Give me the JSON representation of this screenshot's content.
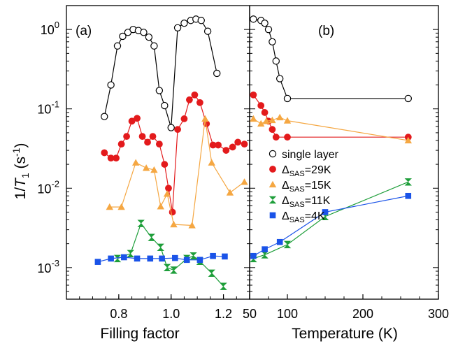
{
  "chart_data": [
    {
      "type": "scatter",
      "panel_label": "(a)",
      "xlabel": "Filling factor",
      "ylabel_main": "1/",
      "ylabel_italic": "T",
      "ylabel_sub": "1",
      "ylabel_unit_open": " (s",
      "ylabel_unit_sup": "-1",
      "ylabel_unit_close": ")",
      "xlim": [
        0.6,
        1.3
      ],
      "ylim": [
        0.0004,
        2
      ],
      "yscale": "log",
      "xticks": [
        0.8,
        1.0,
        1.2
      ],
      "xtick_labels": [
        "0.8",
        "1.0",
        "1.2"
      ],
      "yticks": [
        0.001,
        0.01,
        0.1,
        1
      ],
      "ytick_base": "10",
      "ytick_exps": [
        "-3",
        "-2",
        "-1",
        "0"
      ],
      "series": [
        {
          "name": "single layer",
          "color": "#000000",
          "marker": "circle-open",
          "x": [
            0.745,
            0.77,
            0.795,
            0.815,
            0.835,
            0.855,
            0.875,
            0.895,
            0.915,
            0.935,
            0.955,
            0.975,
            1.0,
            1.025,
            1.05,
            1.075,
            1.095,
            1.115,
            1.14,
            1.175
          ],
          "y": [
            0.08,
            0.2,
            0.62,
            0.82,
            0.92,
            1.0,
            0.97,
            0.92,
            0.8,
            0.62,
            0.17,
            0.11,
            0.058,
            1.05,
            1.2,
            1.3,
            1.35,
            1.3,
            0.95,
            0.28
          ]
        },
        {
          "name": "29K",
          "color": "#e31a1c",
          "marker": "circle",
          "x": [
            0.745,
            0.77,
            0.79,
            0.81,
            0.83,
            0.85,
            0.87,
            0.89,
            0.91,
            0.93,
            0.955,
            0.975,
            0.99,
            1.005,
            1.025,
            1.05,
            1.07,
            1.09,
            1.11,
            1.135,
            1.16,
            1.18,
            1.21,
            1.235,
            1.255,
            1.28
          ],
          "y": [
            0.028,
            0.024,
            0.024,
            0.036,
            0.045,
            0.07,
            0.076,
            0.045,
            0.038,
            0.045,
            0.036,
            0.02,
            0.01,
            0.005,
            0.055,
            0.075,
            0.13,
            0.15,
            0.12,
            0.065,
            0.035,
            0.035,
            0.03,
            0.033,
            0.038,
            0.036
          ]
        },
        {
          "name": "15K",
          "color": "#f5a742",
          "marker": "triangle-up",
          "x": [
            0.765,
            0.81,
            0.865,
            0.905,
            0.935,
            0.96,
            0.985,
            1.01,
            1.08,
            1.13,
            1.155,
            1.225,
            1.28
          ],
          "y": [
            0.0058,
            0.0058,
            0.021,
            0.018,
            0.017,
            0.0059,
            0.0085,
            0.0035,
            0.0034,
            0.075,
            0.021,
            0.0088,
            0.012
          ]
        },
        {
          "name": "11K",
          "color": "#1e9e3a",
          "marker": "hourglass",
          "x": [
            0.795,
            0.845,
            0.885,
            0.925,
            0.96,
            0.985,
            1.01,
            1.06,
            1.085,
            1.11,
            1.155,
            1.2
          ],
          "y": [
            0.0013,
            0.0015,
            0.0036,
            0.0024,
            0.0018,
            0.001,
            0.00093,
            0.0013,
            0.0014,
            0.0012,
            0.00085,
            0.00058
          ]
        },
        {
          "name": "4K",
          "color": "#1a53e8",
          "marker": "square",
          "x": [
            0.72,
            0.77,
            0.82,
            0.87,
            0.92,
            0.965,
            1.015,
            1.06,
            1.11,
            1.16,
            1.205
          ],
          "y": [
            0.00118,
            0.0013,
            0.00135,
            0.0013,
            0.0013,
            0.0013,
            0.00132,
            0.00125,
            0.00125,
            0.0014,
            0.00138
          ]
        }
      ]
    },
    {
      "type": "line",
      "panel_label": "(b)",
      "xlabel": "Temperature (K)",
      "xlim": [
        50,
        300
      ],
      "ylim": [
        0.0004,
        2
      ],
      "yscale": "log",
      "xticks": [
        50,
        100,
        200,
        300
      ],
      "xtick_labels": [
        "50",
        "100",
        "200",
        "300"
      ],
      "series": [
        {
          "name": "single layer",
          "color": "#000000",
          "marker": "circle-open",
          "x": [
            55,
            65,
            70,
            75,
            80,
            85,
            90,
            100,
            260
          ],
          "y": [
            1.35,
            1.3,
            1.2,
            1.0,
            0.7,
            0.4,
            0.24,
            0.135,
            0.135
          ]
        },
        {
          "name": "29K",
          "color": "#e31a1c",
          "marker": "circle",
          "x": [
            55,
            65,
            70,
            75,
            80,
            85,
            100,
            260
          ],
          "y": [
            0.15,
            0.11,
            0.09,
            0.07,
            0.055,
            0.044,
            0.044,
            0.044
          ]
        },
        {
          "name": "15K",
          "color": "#f5a742",
          "marker": "triangle-up",
          "x": [
            55,
            65,
            72,
            80,
            90,
            100,
            260
          ],
          "y": [
            0.075,
            0.065,
            0.07,
            0.072,
            0.078,
            0.071,
            0.04
          ]
        },
        {
          "name": "11K",
          "color": "#1e9e3a",
          "marker": "hourglass",
          "x": [
            55,
            70,
            100,
            150,
            260
          ],
          "y": [
            0.0013,
            0.00145,
            0.00195,
            0.0044,
            0.012
          ]
        },
        {
          "name": "4K",
          "color": "#1a53e8",
          "marker": "square",
          "x": [
            55,
            70,
            90,
            150,
            260
          ],
          "y": [
            0.0014,
            0.0017,
            0.0021,
            0.005,
            0.008
          ]
        }
      ],
      "legend": {
        "placement": "lower-right",
        "delta_symbol": "Δ",
        "subscript": "SAS",
        "entries": [
          {
            "marker": "circle-open",
            "color": "#000000",
            "text": "single layer"
          },
          {
            "marker": "circle",
            "color": "#e31a1c",
            "value": "=29K"
          },
          {
            "marker": "triangle-up",
            "color": "#f5a742",
            "value": "=15K"
          },
          {
            "marker": "hourglass",
            "color": "#1e9e3a",
            "value": "=11K"
          },
          {
            "marker": "square",
            "color": "#1a53e8",
            "value": "=4K"
          }
        ]
      }
    }
  ]
}
